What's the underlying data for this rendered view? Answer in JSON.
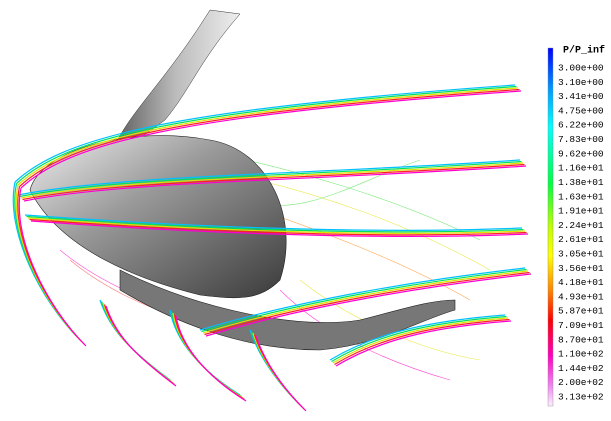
{
  "legend": {
    "title": "P/P_inf",
    "labels": [
      "3.00e+00",
      "3.10e+00",
      "3.41e+00",
      "4.75e+00",
      "6.22e+00",
      "7.83e+00",
      "9.62e+00",
      "1.16e+01",
      "1.38e+01",
      "1.63e+01",
      "1.91e+01",
      "2.24e+01",
      "2.61e+01",
      "3.05e+01",
      "3.56e+01",
      "4.18e+01",
      "4.93e+01",
      "5.87e+01",
      "7.09e+01",
      "8.70e+01",
      "1.10e+02",
      "1.44e+02",
      "2.00e+02",
      "3.13e+02"
    ]
  }
}
